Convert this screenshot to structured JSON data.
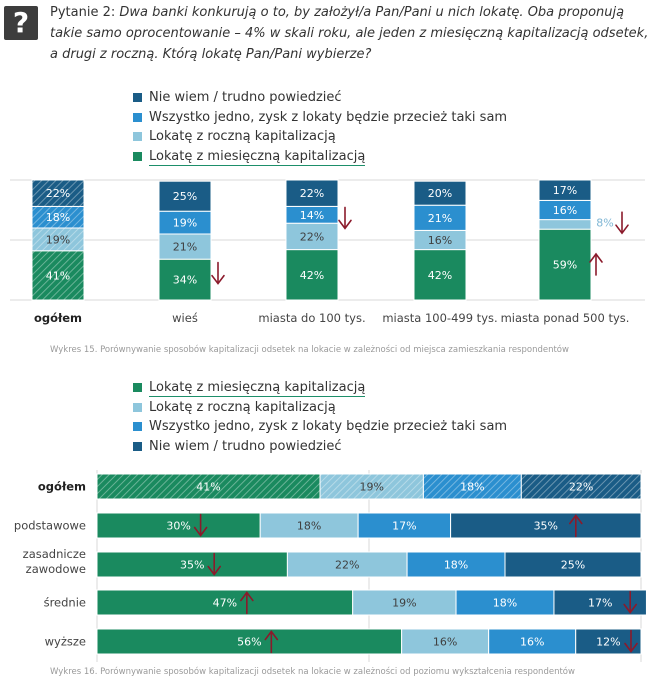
{
  "question": {
    "prefix": "Pytanie 2:",
    "text": "Dwa banki konkurują o to, by założył/a Pan/Pani u nich lokatę. Oba proponują takie samo oprocentowanie – 4% w skali roku, ale jeden z miesięczną kapitalizacją odsetek, a drugi z roczną. Którą lokatę Pan/Pani wybierze?"
  },
  "chart_data": [
    {
      "type": "bar",
      "orientation": "vertical-stacked-percent",
      "categories": [
        "ogółem",
        "wieś",
        "miasta do 100 tys.",
        "miasta 100-499 tys.",
        "miasta ponad 500 tys."
      ],
      "series": [
        {
          "name": "Lokatę z miesięczną kapitalizacją",
          "values": [
            41,
            34,
            42,
            42,
            59
          ],
          "color": "#1a8a5f"
        },
        {
          "name": "Lokatę z roczną kapitalizacją",
          "values": [
            19,
            21,
            22,
            16,
            8
          ],
          "color": "#8ec6dc"
        },
        {
          "name": "Wszystko jedno, zysk z lokaty będzie przecież taki sam",
          "values": [
            18,
            19,
            14,
            21,
            16
          ],
          "color": "#2b8fcf"
        },
        {
          "name": "Nie wiem / trudno powiedzieć",
          "values": [
            22,
            25,
            22,
            20,
            17
          ],
          "color": "#1a5c86"
        }
      ],
      "labels": [
        [
          "41%",
          "34%",
          "42%",
          "42%",
          "59%"
        ],
        [
          "19%",
          "21%",
          "22%",
          "16%",
          "8%"
        ],
        [
          "18%",
          "19%",
          "14%",
          "21%",
          "16%"
        ],
        [
          "22%",
          "25%",
          "22%",
          "20%",
          "17%"
        ]
      ],
      "legend_order": [
        "Nie wiem / trudno powiedzieć",
        "Wszystko jedno, zysk z lokaty będzie przecież taki sam",
        "Lokatę z roczną kapitalizacją",
        "Lokatę z miesięczną kapitalizacją"
      ],
      "legend_position": "top",
      "ylim": [
        0,
        100
      ],
      "markers": [
        {
          "category": "wieś",
          "direction": "down"
        },
        {
          "category": "miasta do 100 tys.",
          "direction": "down"
        },
        {
          "category": "miasta ponad 500 tys.",
          "direction": "up"
        },
        {
          "category": "miasta ponad 500 tys.",
          "direction": "down",
          "near": "8%"
        }
      ],
      "caption": "Wykres 15. Porównywanie sposobów kapitalizacji odsetek na lokacie w zależności od miejsca zamieszkania respondentów"
    },
    {
      "type": "bar",
      "orientation": "horizontal-stacked-percent",
      "categories": [
        "ogółem",
        "podstawowe",
        "zasadnicze zawodowe",
        "średnie",
        "wyższe"
      ],
      "series": [
        {
          "name": "Lokatę z miesięczną kapitalizacją",
          "values": [
            41,
            30,
            35,
            47,
            56
          ],
          "color": "#1a8a5f"
        },
        {
          "name": "Lokatę z roczną kapitalizacją",
          "values": [
            19,
            18,
            22,
            19,
            16
          ],
          "color": "#8ec6dc"
        },
        {
          "name": "Wszystko jedno, zysk z lokaty będzie przecież taki sam",
          "values": [
            18,
            17,
            18,
            18,
            16
          ],
          "color": "#2b8fcf"
        },
        {
          "name": "Nie wiem / trudno powiedzieć",
          "values": [
            22,
            35,
            25,
            17,
            12
          ],
          "color": "#1a5c86"
        }
      ],
      "labels": [
        [
          "41%",
          "30%",
          "35%",
          "47%",
          "56%"
        ],
        [
          "19%",
          "18%",
          "22%",
          "19%",
          "16%"
        ],
        [
          "18%",
          "17%",
          "18%",
          "18%",
          "16%"
        ],
        [
          "22%",
          "35%",
          "25%",
          "17%",
          "12%"
        ]
      ],
      "legend_order": [
        "Lokatę z miesięczną kapitalizacją",
        "Lokatę z roczną kapitalizacją",
        "Wszystko jedno, zysk z lokaty będzie przecież taki sam",
        "Nie wiem / trudno powiedzieć"
      ],
      "legend_position": "top",
      "xlim": [
        0,
        100
      ],
      "markers": [
        {
          "category": "podstawowe",
          "series": 0,
          "direction": "down"
        },
        {
          "category": "podstawowe",
          "series": 3,
          "direction": "up"
        },
        {
          "category": "zasadnicze zawodowe",
          "series": 0,
          "direction": "down"
        },
        {
          "category": "średnie",
          "series": 0,
          "direction": "up"
        },
        {
          "category": "średnie",
          "series": 3,
          "direction": "down"
        },
        {
          "category": "wyższe",
          "series": 0,
          "direction": "up"
        },
        {
          "category": "wyższe",
          "series": 3,
          "direction": "down"
        }
      ],
      "caption": "Wykres 16. Porównywanie sposobów kapitalizacji odsetek na lokacie w zależności od poziomu wykształcenia respondentów"
    }
  ]
}
